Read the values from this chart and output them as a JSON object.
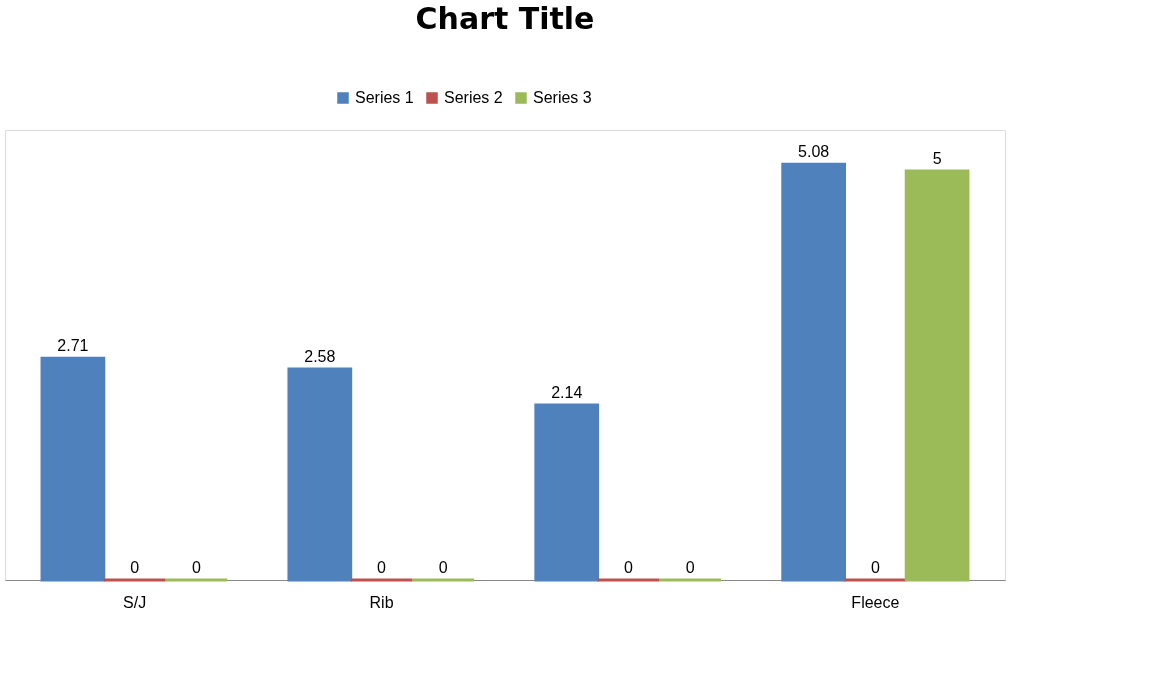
{
  "chart_data": {
    "type": "bar",
    "title": "Chart Title",
    "categories": [
      "S/J",
      "Rib",
      null,
      "Fleece"
    ],
    "series": [
      {
        "name": "Series 1",
        "color": "#4f81bd",
        "values": [
          2.71,
          2.58,
          2.14,
          5.08
        ]
      },
      {
        "name": "Series 2",
        "color": "#c0504d",
        "values": [
          0,
          0,
          0,
          0
        ]
      },
      {
        "name": "Series 3",
        "color": "#9bbb59",
        "values": [
          0,
          0,
          0,
          5
        ]
      }
    ],
    "data_labels": true,
    "legend": "top",
    "grid": false
  }
}
